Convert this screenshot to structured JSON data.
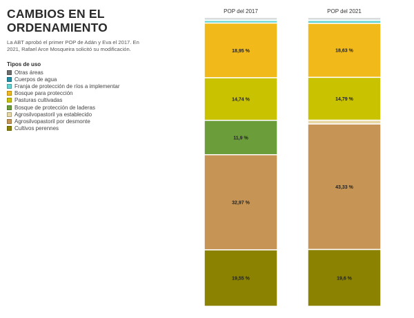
{
  "header": {
    "title_lines": [
      "CAMBIOS EN EL",
      "ORDENAMIENTO"
    ],
    "intro_lines": [
      "La ABT aprobó el primer POP de Adán y Eva el 2017. En",
      "2021, Rafael Arce Mosqueira solicitó su modificación."
    ]
  },
  "legend": {
    "title": "Tipos de uso",
    "items": [
      {
        "label": "Otras áreas",
        "color": "#6e6e6e"
      },
      {
        "label": "Cuerpos de agua",
        "color": "#1f8fa6"
      },
      {
        "label": "Franja de protección de ríos a implementar",
        "color": "#5fd3d1"
      },
      {
        "label": "Bosque para protección",
        "color": "#f2b91b"
      },
      {
        "label": "Pasturas cultivadas",
        "color": "#c8c200"
      },
      {
        "label": "Bosque de protección de laderas",
        "color": "#6b9e3a"
      },
      {
        "label": "Agrosilvopastoril ya establecido",
        "color": "#e6d7a3"
      },
      {
        "label": "Agrosilvopastoril por desmonte",
        "color": "#c69555"
      },
      {
        "label": "Cultivos perennes",
        "color": "#8a8200"
      }
    ]
  },
  "chart_data": {
    "type": "bar",
    "stacked": true,
    "normalized": true,
    "categories": [
      "POP del 2017",
      "POP del 2021"
    ],
    "series": [
      {
        "name": "Otras áreas",
        "color": "#6e6e6e",
        "values": [
          0.5,
          0.5
        ],
        "labels": [
          "",
          ""
        ]
      },
      {
        "name": "Cuerpos de agua",
        "color": "#1f8fa6",
        "values": [
          0.4,
          0.4
        ],
        "labels": [
          "",
          ""
        ]
      },
      {
        "name": "Franja de protección de ríos a implementar",
        "color": "#5fd3d1",
        "values": [
          0.9,
          1.0
        ],
        "labels": [
          "",
          ""
        ]
      },
      {
        "name": "Bosque para protección",
        "color": "#f2b91b",
        "values": [
          18.95,
          18.63
        ],
        "labels": [
          "18,95 %",
          "18,63 %"
        ]
      },
      {
        "name": "Pasturas cultivadas",
        "color": "#c8c200",
        "values": [
          14.74,
          14.79
        ],
        "labels": [
          "14,74 %",
          "14,79 %"
        ]
      },
      {
        "name": "Bosque de protección de laderas",
        "color": "#6b9e3a",
        "values": [
          11.9,
          0
        ],
        "labels": [
          "11,9 %",
          ""
        ]
      },
      {
        "name": "Agrosilvopastoril ya establecido",
        "color": "#e6d7a3",
        "values": [
          0,
          1.3
        ],
        "labels": [
          "",
          ""
        ]
      },
      {
        "name": "Agrosilvopastoril por desmonte",
        "color": "#c69555",
        "values": [
          32.97,
          43.33
        ],
        "labels": [
          "32,97 %",
          "43,33 %"
        ]
      },
      {
        "name": "Cultivos perennes",
        "color": "#8a8200",
        "values": [
          19.55,
          19.6
        ],
        "labels": [
          "19,55 %",
          "19,6 %"
        ]
      }
    ]
  }
}
